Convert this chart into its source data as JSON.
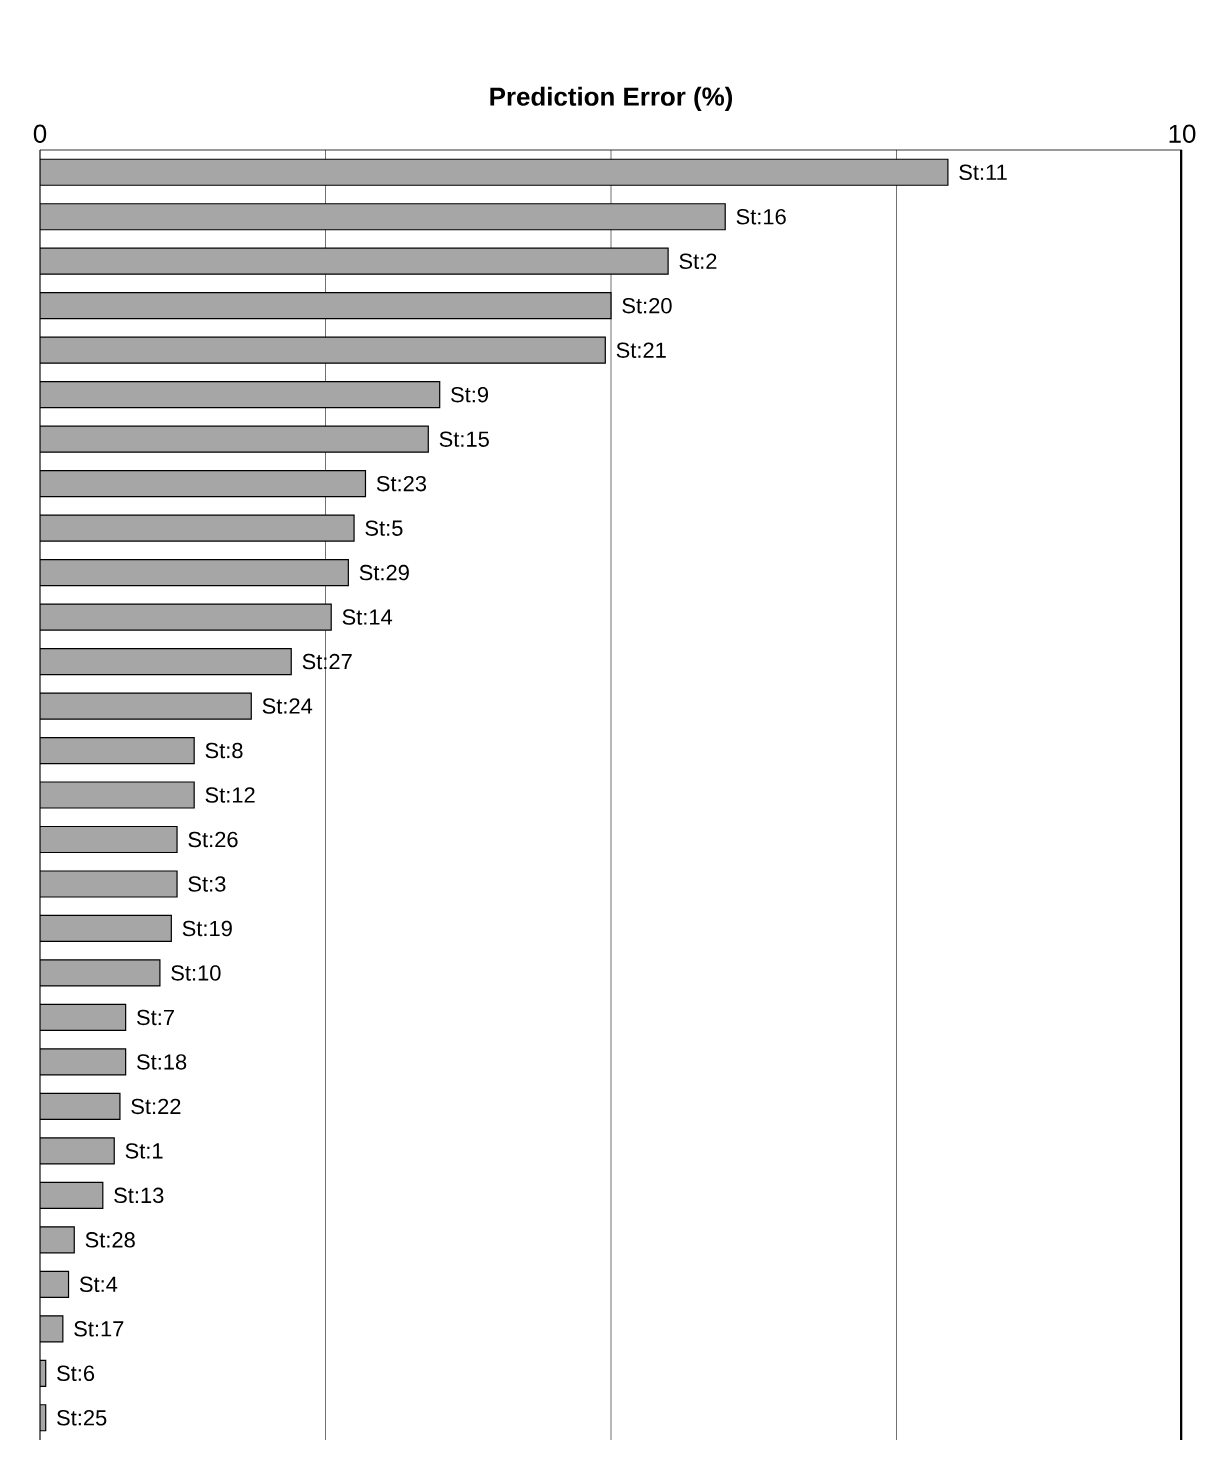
{
  "chart_data": {
    "type": "bar",
    "orientation": "horizontal",
    "xlabel": "Prediction Error (%)",
    "categories": [
      "St:11",
      "St:16",
      "St:2",
      "St:20",
      "St:21",
      "St:9",
      "St:15",
      "St:23",
      "St:5",
      "St:29",
      "St:14",
      "St:27",
      "St:24",
      "St:8",
      "St:12",
      "St:26",
      "St:3",
      "St:19",
      "St:10",
      "St:7",
      "St:18",
      "St:22",
      "St:1",
      "St:13",
      "St:28",
      "St:4",
      "St:17",
      "St:6",
      "St:25"
    ],
    "values": [
      7.95,
      6.0,
      5.5,
      5.0,
      4.95,
      3.5,
      3.4,
      2.85,
      2.75,
      2.7,
      2.55,
      2.2,
      1.85,
      1.35,
      1.35,
      1.2,
      1.2,
      1.15,
      1.05,
      0.75,
      0.75,
      0.7,
      0.65,
      0.55,
      0.3,
      0.25,
      0.2,
      0.05,
      0.05
    ],
    "color": "#a6a6a6",
    "xlim": [
      0,
      10
    ],
    "xticks": [
      0,
      {
        "value": 2.5,
        "label": null
      },
      {
        "value": 5,
        "label": null
      },
      {
        "value": 7.5,
        "label": null
      },
      10
    ],
    "grid": "x"
  }
}
